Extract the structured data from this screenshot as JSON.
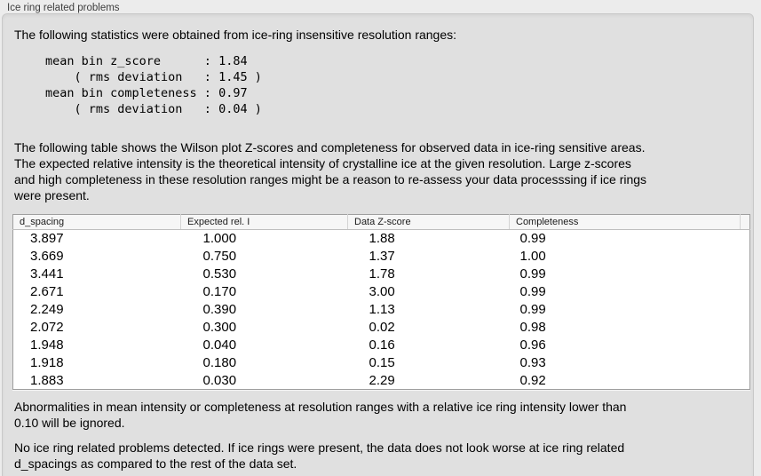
{
  "group": {
    "title": "Ice ring related problems"
  },
  "intro": {
    "text": "The following statistics were obtained from ice-ring insensitive resolution ranges:"
  },
  "stats_block": {
    "text": "mean bin z_score      : 1.84\n    ( rms deviation   : 1.45 )\nmean bin completeness : 0.97\n    ( rms deviation   : 0.04 )",
    "values": {
      "mean_bin_z_score": 1.84,
      "z_score_rms_deviation": 1.45,
      "mean_bin_completeness": 0.97,
      "completeness_rms_deviation": 0.04
    }
  },
  "description": {
    "text": "The following table shows the Wilson plot Z-scores and completeness for observed data in ice-ring sensitive areas.\nThe expected relative intensity is the theoretical intensity of crystalline ice at the given resolution. Large z-scores\nand high completeness in these resolution ranges might be a reason to re-assess your data processsing if ice rings\nwere present."
  },
  "table": {
    "columns": [
      "d_spacing",
      "Expected rel. I",
      "Data Z-score",
      "Completeness"
    ],
    "rows": [
      [
        "3.897",
        "1.000",
        "1.88",
        "0.99"
      ],
      [
        "3.669",
        "0.750",
        "1.37",
        "1.00"
      ],
      [
        "3.441",
        "0.530",
        "1.78",
        "0.99"
      ],
      [
        "2.671",
        "0.170",
        "3.00",
        "0.99"
      ],
      [
        "2.249",
        "0.390",
        "1.13",
        "0.99"
      ],
      [
        "2.072",
        "0.300",
        "0.02",
        "0.98"
      ],
      [
        "1.948",
        "0.040",
        "0.16",
        "0.96"
      ],
      [
        "1.918",
        "0.180",
        "0.15",
        "0.93"
      ],
      [
        "1.883",
        "0.030",
        "2.29",
        "0.92"
      ]
    ]
  },
  "ignore_note": {
    "text": "Abnormalities in mean intensity or completeness at resolution ranges with a relative ice ring intensity lower than\n0.10 will be ignored."
  },
  "conclusion": {
    "text": "No ice ring related problems detected. If ice rings were present, the data does not look worse at ice ring related\nd_spacings as compared to the rest of the data set."
  },
  "colors": {
    "outer_background": "#ececec",
    "panel_background": "#e0e0e0",
    "table_background": "#ffffff",
    "table_border": "#9e9e9e",
    "header_background": "#f6f6f6",
    "text": "#000000"
  }
}
